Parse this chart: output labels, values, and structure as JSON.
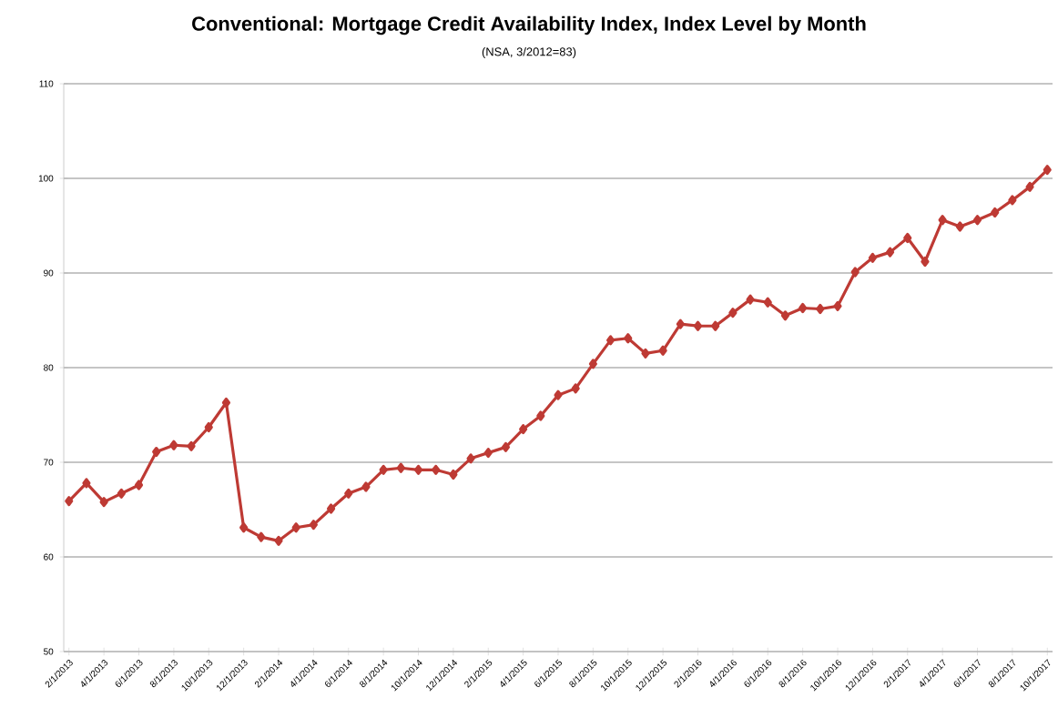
{
  "chart_data": {
    "type": "line",
    "title": "Conventional: Mortgage Credit Availability Index, Index Level by Month",
    "subtitle": "(NSA, 3/2012=83)",
    "categories": [
      "2/1/2013",
      null,
      "4/1/2013",
      null,
      "6/1/2013",
      null,
      "8/1/2013",
      null,
      "10/1/2013",
      null,
      "12/1/2013",
      null,
      "2/1/2014",
      null,
      "4/1/2014",
      null,
      "6/1/2014",
      null,
      "8/1/2014",
      null,
      "10/1/2014",
      null,
      "12/1/2014",
      null,
      "2/1/2015",
      null,
      "4/1/2015",
      null,
      "6/1/2015",
      null,
      "8/1/2015",
      null,
      "10/1/2015",
      null,
      "12/1/2015",
      null,
      "2/1/2016",
      null,
      "4/1/2016",
      null,
      "6/1/2016",
      null,
      "8/1/2016",
      null,
      "10/1/2016",
      null,
      "12/1/2016",
      null,
      "2/1/2017",
      null,
      "4/1/2017",
      null,
      "6/1/2017",
      null,
      "8/1/2017",
      null,
      "10/1/2017"
    ],
    "series": [
      {
        "color": "#be3a34",
        "values": [
          65.9,
          67.8,
          65.8,
          66.7,
          67.6,
          71.1,
          71.8,
          71.7,
          73.7,
          76.3,
          63.1,
          62.1,
          61.7,
          63.1,
          63.4,
          65.1,
          66.7,
          67.4,
          69.2,
          69.4,
          69.2,
          69.2,
          68.7,
          70.4,
          71.0,
          71.6,
          73.5,
          74.9,
          77.1,
          77.8,
          80.4,
          82.9,
          83.1,
          81.5,
          81.8,
          84.6,
          84.4,
          84.4,
          85.8,
          87.2,
          86.9,
          85.5,
          86.3,
          86.2,
          86.5,
          90.1,
          91.6,
          92.2,
          93.7,
          91.2,
          95.6,
          94.9,
          95.6,
          96.4,
          97.7,
          99.1,
          100.9
        ]
      }
    ],
    "ylim": [
      50,
      110
    ],
    "yticks": [
      50,
      60,
      70,
      80,
      90,
      100,
      110
    ],
    "grid": "y",
    "marker": "diamond",
    "line_style": "solid"
  }
}
